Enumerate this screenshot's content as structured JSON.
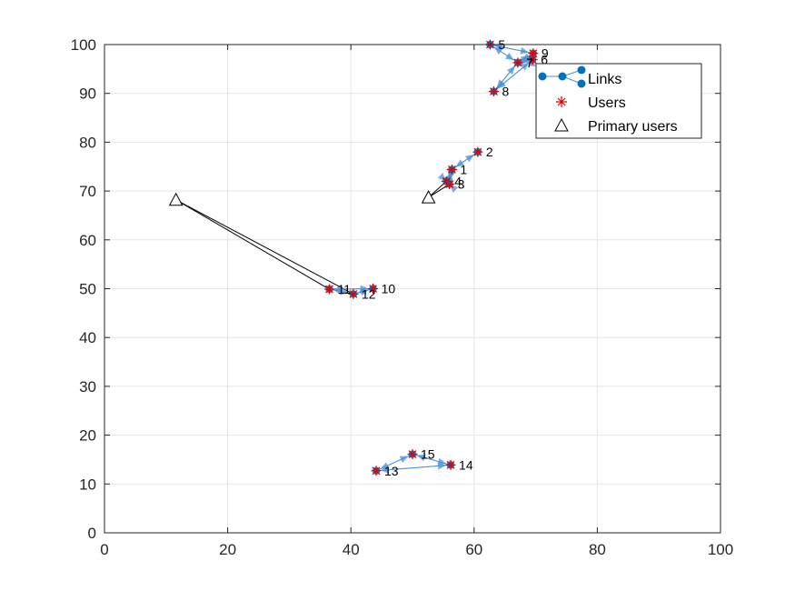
{
  "chart_data": {
    "type": "scatter",
    "xlim": [
      0,
      100
    ],
    "ylim": [
      0,
      100
    ],
    "grid": true,
    "xticks": [
      "0",
      "20",
      "40",
      "60",
      "80",
      "100"
    ],
    "yticks": [
      "0",
      "10",
      "20",
      "30",
      "40",
      "50",
      "60",
      "70",
      "80",
      "90",
      "100"
    ],
    "legend": {
      "placement": "top-right",
      "entries": [
        "Links",
        "Users",
        "Primary users"
      ]
    },
    "users": [
      {
        "id": "1",
        "x": 56.4,
        "y": 74.4
      },
      {
        "id": "2",
        "x": 60.6,
        "y": 78.0
      },
      {
        "id": "3",
        "x": 56.0,
        "y": 71.4
      },
      {
        "id": "4",
        "x": 55.5,
        "y": 72.0
      },
      {
        "id": "5",
        "x": 62.6,
        "y": 100.0
      },
      {
        "id": "6",
        "x": 69.5,
        "y": 96.9
      },
      {
        "id": "7",
        "x": 67.1,
        "y": 96.3
      },
      {
        "id": "8",
        "x": 63.2,
        "y": 90.4
      },
      {
        "id": "9",
        "x": 69.6,
        "y": 98.2
      },
      {
        "id": "10",
        "x": 43.6,
        "y": 50.0
      },
      {
        "id": "11",
        "x": 36.5,
        "y": 49.9
      },
      {
        "id": "12",
        "x": 40.4,
        "y": 48.9
      },
      {
        "id": "13",
        "x": 44.1,
        "y": 12.7
      },
      {
        "id": "14",
        "x": 56.2,
        "y": 13.9
      },
      {
        "id": "15",
        "x": 50.0,
        "y": 16.1
      }
    ],
    "primary_users": [
      {
        "x": 11.6,
        "y": 68.2
      },
      {
        "x": 52.6,
        "y": 68.7
      }
    ],
    "links": [
      [
        "1",
        "2"
      ],
      [
        "2",
        "1"
      ],
      [
        "1",
        "3"
      ],
      [
        "3",
        "1"
      ],
      [
        "1",
        "4"
      ],
      [
        "4",
        "1"
      ],
      [
        "3",
        "4"
      ],
      [
        "4",
        "3"
      ],
      [
        "5",
        "7"
      ],
      [
        "7",
        "5"
      ],
      [
        "5",
        "9"
      ],
      [
        "9",
        "5"
      ],
      [
        "7",
        "9"
      ],
      [
        "9",
        "7"
      ],
      [
        "7",
        "6"
      ],
      [
        "6",
        "7"
      ],
      [
        "8",
        "7"
      ],
      [
        "7",
        "8"
      ],
      [
        "8",
        "6"
      ],
      [
        "6",
        "8"
      ],
      [
        "6",
        "9"
      ],
      [
        "11",
        "10"
      ],
      [
        "10",
        "11"
      ],
      [
        "11",
        "12"
      ],
      [
        "12",
        "11"
      ],
      [
        "12",
        "10"
      ],
      [
        "10",
        "12"
      ],
      [
        "13",
        "15"
      ],
      [
        "15",
        "13"
      ],
      [
        "13",
        "14"
      ],
      [
        "14",
        "13"
      ],
      [
        "15",
        "14"
      ],
      [
        "14",
        "15"
      ]
    ],
    "primary_links": [
      {
        "pu": 0,
        "user": "11"
      },
      {
        "pu": 0,
        "user": "12"
      },
      {
        "pu": 1,
        "user": "3"
      },
      {
        "pu": 1,
        "user": "4"
      }
    ],
    "colors": {
      "link": "#4a90d9",
      "link_marker": "#0072bd",
      "user": "#e00000",
      "primary": "#000000",
      "grid": "#e5e5e5",
      "axis": "#262626"
    }
  }
}
